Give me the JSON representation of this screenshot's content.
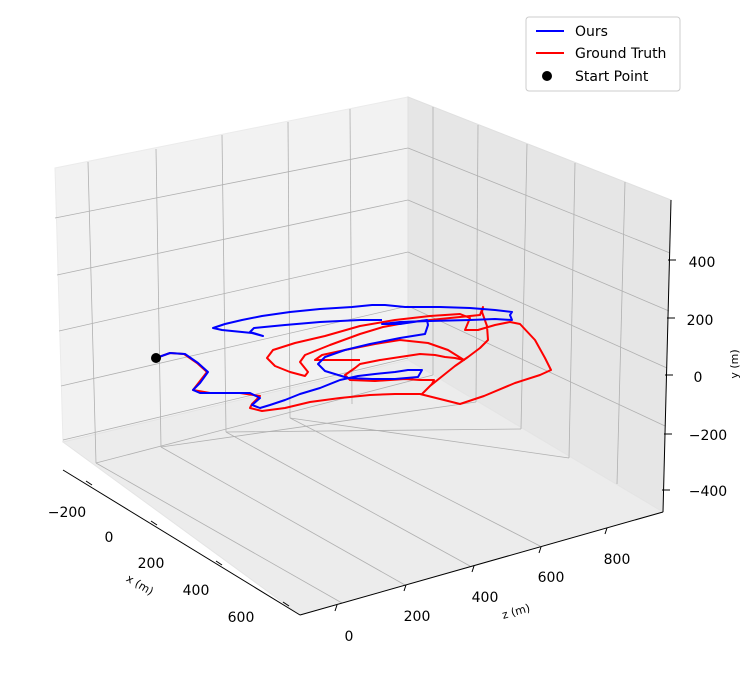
{
  "chart_data": {
    "type": "line",
    "projection": "3d",
    "grid": true,
    "legend_position": "top-right",
    "axes": {
      "x": {
        "label": "x (m)",
        "ticks": [
          -200,
          0,
          200,
          400,
          600
        ],
        "tick_labels": [
          "−200",
          "0",
          "200",
          "400",
          "600"
        ]
      },
      "z": {
        "label": "z (m)",
        "ticks": [
          0,
          200,
          400,
          600,
          800
        ],
        "tick_labels": [
          "0",
          "200",
          "400",
          "600",
          "800"
        ]
      },
      "y": {
        "label": "y (m)",
        "ticks": [
          -400,
          -200,
          0,
          200,
          400
        ],
        "tick_labels": [
          "−400",
          "−200",
          "0",
          "200",
          "400"
        ]
      }
    },
    "legend": [
      {
        "label": "Ours",
        "color": "#0000ff",
        "marker": "line"
      },
      {
        "label": "Ground Truth",
        "color": "#ff0000",
        "marker": "line"
      },
      {
        "label": "Start Point",
        "color": "#000000",
        "marker": "dot"
      }
    ],
    "series": [
      {
        "name": "Ours",
        "color": "#0000ff",
        "points": [
          [
            156,
            358
          ],
          [
            170,
            353
          ],
          [
            185,
            354
          ],
          [
            198,
            363
          ],
          [
            208,
            372
          ],
          [
            200,
            383
          ],
          [
            193,
            390
          ],
          [
            200,
            393
          ],
          [
            220,
            393
          ],
          [
            250,
            393
          ],
          [
            260,
            398
          ],
          [
            252,
            405
          ],
          [
            260,
            408
          ],
          [
            270,
            405
          ],
          [
            285,
            400
          ],
          [
            300,
            394
          ],
          [
            320,
            388
          ],
          [
            340,
            380
          ],
          [
            358,
            376
          ],
          [
            375,
            374
          ],
          [
            395,
            372
          ],
          [
            408,
            370
          ],
          [
            422,
            370
          ],
          [
            418,
            377
          ],
          [
            395,
            379
          ],
          [
            372,
            379
          ],
          [
            348,
            378
          ],
          [
            325,
            371
          ],
          [
            318,
            364
          ],
          [
            325,
            357
          ],
          [
            345,
            350
          ],
          [
            370,
            344
          ],
          [
            400,
            338
          ],
          [
            425,
            334
          ],
          [
            428,
            325
          ],
          [
            427,
            320
          ],
          [
            400,
            324
          ],
          [
            382,
            324
          ],
          [
            400,
            322
          ],
          [
            430,
            321
          ],
          [
            470,
            320
          ],
          [
            495,
            319
          ],
          [
            512,
            320
          ],
          [
            510,
            315
          ],
          [
            512,
            312
          ],
          [
            495,
            310
          ],
          [
            470,
            308
          ],
          [
            440,
            307
          ],
          [
            405,
            307
          ],
          [
            385,
            305
          ],
          [
            372,
            305
          ],
          [
            352,
            307
          ],
          [
            320,
            309
          ],
          [
            290,
            312
          ],
          [
            262,
            316
          ],
          [
            242,
            320
          ],
          [
            225,
            324
          ],
          [
            213,
            328
          ],
          [
            222,
            330
          ],
          [
            232,
            331
          ],
          [
            252,
            333
          ],
          [
            263,
            336
          ],
          [
            250,
            332
          ],
          [
            254,
            328
          ],
          [
            285,
            325
          ],
          [
            320,
            322
          ],
          [
            360,
            320
          ],
          [
            382,
            320
          ]
        ]
      },
      {
        "name": "Ground Truth",
        "color": "#ff0000",
        "points": [
          [
            156,
            358
          ],
          [
            170,
            353
          ],
          [
            184,
            354
          ],
          [
            197,
            363
          ],
          [
            207,
            372
          ],
          [
            200,
            381
          ],
          [
            193,
            390
          ],
          [
            210,
            393
          ],
          [
            240,
            393
          ],
          [
            260,
            396
          ],
          [
            252,
            404
          ],
          [
            250,
            408
          ],
          [
            262,
            411
          ],
          [
            285,
            408
          ],
          [
            310,
            402
          ],
          [
            340,
            398
          ],
          [
            370,
            395
          ],
          [
            395,
            394
          ],
          [
            420,
            394
          ],
          [
            460,
            404
          ],
          [
            484,
            396
          ],
          [
            515,
            383
          ],
          [
            540,
            375
          ],
          [
            551,
            370
          ],
          [
            545,
            358
          ],
          [
            535,
            340
          ],
          [
            520,
            324
          ],
          [
            510,
            322
          ],
          [
            495,
            325
          ],
          [
            478,
            330
          ],
          [
            465,
            330
          ],
          [
            470,
            318
          ],
          [
            460,
            314
          ],
          [
            430,
            316
          ],
          [
            395,
            320
          ],
          [
            360,
            326
          ],
          [
            325,
            336
          ],
          [
            295,
            343
          ],
          [
            273,
            350
          ],
          [
            267,
            358
          ],
          [
            275,
            366
          ],
          [
            290,
            372
          ],
          [
            305,
            376
          ],
          [
            308,
            372
          ],
          [
            300,
            362
          ],
          [
            305,
            355
          ],
          [
            330,
            345
          ],
          [
            360,
            334
          ],
          [
            383,
            327
          ],
          [
            410,
            322
          ],
          [
            440,
            319
          ],
          [
            470,
            316
          ],
          [
            480,
            315
          ],
          [
            483,
            307
          ],
          [
            482,
            312
          ],
          [
            487,
            326
          ],
          [
            488,
            340
          ],
          [
            480,
            348
          ],
          [
            468,
            357
          ],
          [
            455,
            366
          ],
          [
            440,
            378
          ],
          [
            430,
            386
          ],
          [
            422,
            394
          ],
          [
            432,
            384
          ],
          [
            434,
            380
          ],
          [
            420,
            380
          ],
          [
            405,
            379
          ],
          [
            375,
            381
          ],
          [
            350,
            380
          ],
          [
            345,
            375
          ],
          [
            355,
            368
          ],
          [
            360,
            364
          ],
          [
            380,
            360
          ],
          [
            400,
            357
          ],
          [
            420,
            354
          ],
          [
            435,
            355
          ],
          [
            445,
            357
          ],
          [
            455,
            358
          ],
          [
            464,
            360
          ],
          [
            448,
            350
          ],
          [
            428,
            343
          ],
          [
            400,
            340
          ],
          [
            375,
            344
          ],
          [
            345,
            350
          ],
          [
            322,
            355
          ],
          [
            315,
            360
          ],
          [
            340,
            360
          ],
          [
            360,
            360
          ]
        ]
      }
    ],
    "start_point": [
      156,
      358
    ]
  }
}
